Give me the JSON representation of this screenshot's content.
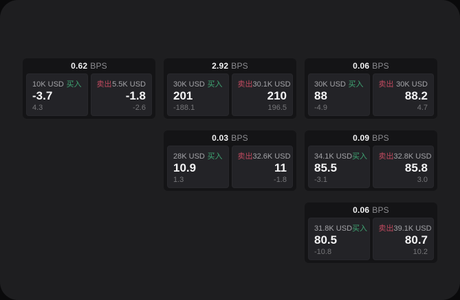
{
  "labels": {
    "bps_unit": "BPS",
    "buy": "买入",
    "sell": "卖出"
  },
  "colors": {
    "buy_green": "#3fa573",
    "sell_red": "#c04a5f",
    "surface": "#1e1e20",
    "card": "#141416",
    "panel": "#232327"
  },
  "cards": [
    {
      "bps": "0.62",
      "buy": {
        "amount": "10K USD",
        "value": "-3.7",
        "sub": "4.3"
      },
      "sell": {
        "amount": "5.5K USD",
        "value": "-1.8",
        "sub": "-2.6"
      }
    },
    {
      "bps": "2.92",
      "buy": {
        "amount": "30K USD",
        "value": "201",
        "sub": "-188.1"
      },
      "sell": {
        "amount": "30.1K USD",
        "value": "210",
        "sub": "196.5"
      }
    },
    {
      "bps": "0.06",
      "buy": {
        "amount": "30K USD",
        "value": "88",
        "sub": "-4.9"
      },
      "sell": {
        "amount": "30K USD",
        "value": "88.2",
        "sub": "4.7"
      }
    },
    {
      "bps": "0.03",
      "buy": {
        "amount": "28K USD",
        "value": "10.9",
        "sub": "1.3"
      },
      "sell": {
        "amount": "32.6K USD",
        "value": "11",
        "sub": "-1.8"
      }
    },
    {
      "bps": "0.09",
      "buy": {
        "amount": "34.1K USD",
        "value": "85.5",
        "sub": "-3.1"
      },
      "sell": {
        "amount": "32.8K USD",
        "value": "85.8",
        "sub": "3.0"
      }
    },
    {
      "bps": "0.06",
      "buy": {
        "amount": "31.8K USD",
        "value": "80.5",
        "sub": "-10.8"
      },
      "sell": {
        "amount": "39.1K USD",
        "value": "80.7",
        "sub": "10.2"
      }
    }
  ]
}
